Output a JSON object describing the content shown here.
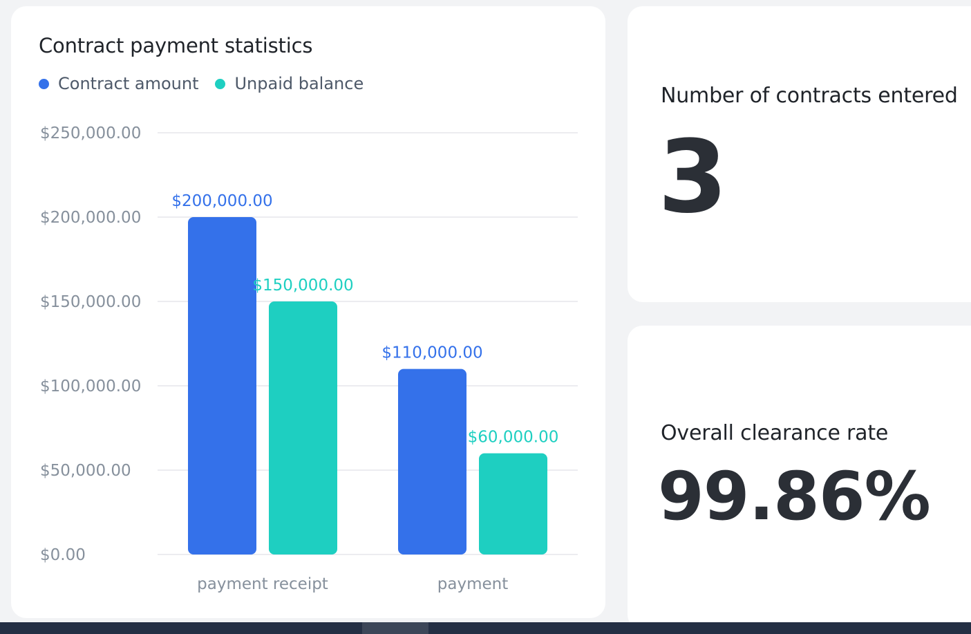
{
  "chart_panel": {
    "title": "Contract payment statistics",
    "legend": [
      {
        "label": "Contract amount",
        "color": "#3471ea"
      },
      {
        "label": "Unpaid balance",
        "color": "#1ecfc1"
      }
    ]
  },
  "chart_data": {
    "type": "bar",
    "title": "Contract payment statistics",
    "categories": [
      "payment receipt",
      "payment"
    ],
    "series": [
      {
        "name": "Contract amount",
        "values": [
          200000,
          110000
        ],
        "labels": [
          "$200,000.00",
          "$110,000.00"
        ],
        "color": "#3471ea"
      },
      {
        "name": "Unpaid balance",
        "values": [
          150000,
          60000
        ],
        "labels": [
          "$150,000.00",
          "$60,000.00"
        ],
        "color": "#1ecfc1"
      }
    ],
    "y_ticks": [
      {
        "value": 0,
        "label": "$0.00"
      },
      {
        "value": 50000,
        "label": "$50,000.00"
      },
      {
        "value": 100000,
        "label": "$100,000.00"
      },
      {
        "value": 150000,
        "label": "$150,000.00"
      },
      {
        "value": 200000,
        "label": "$200,000.00"
      },
      {
        "value": 250000,
        "label": "$250,000.00"
      }
    ],
    "ylim": [
      0,
      250000
    ],
    "grid": true,
    "legend_position": "top-left"
  },
  "stats": {
    "contracts": {
      "label": "Number of contracts entered",
      "value": "3"
    },
    "clearance": {
      "label": "Overall clearance rate",
      "value": "99.86%"
    }
  }
}
